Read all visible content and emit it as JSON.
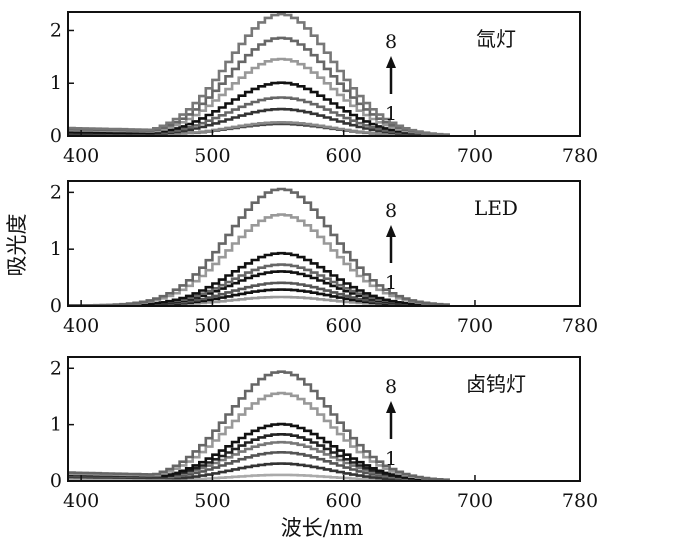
{
  "figure": {
    "ylabel": "吸光度",
    "xlabel": "波长/nm"
  },
  "chart_data": [
    {
      "type": "line",
      "title": "氙灯",
      "arrow_labels": {
        "bottom": "1",
        "top": "8"
      },
      "xlim": [
        390,
        780
      ],
      "ylim": [
        0,
        2.35
      ],
      "xticks": [
        400,
        500,
        600,
        700,
        780
      ],
      "yticks": [
        0,
        1,
        2
      ],
      "series": [
        {
          "color": "#444444",
          "peak": 0.22,
          "center": 550,
          "width": 38,
          "baseline": 0.08
        },
        {
          "color": "#888888",
          "peak": 0.25,
          "center": 550,
          "width": 38,
          "baseline": 0.02
        },
        {
          "color": "#333333",
          "peak": 0.5,
          "center": 550,
          "width": 40,
          "baseline": 0.03
        },
        {
          "color": "#666666",
          "peak": 0.72,
          "center": 550,
          "width": 40,
          "baseline": 0.05
        },
        {
          "color": "#111111",
          "peak": 1.0,
          "center": 550,
          "width": 40,
          "baseline": 0.06
        },
        {
          "color": "#999999",
          "peak": 1.45,
          "center": 550,
          "width": 40,
          "baseline": 0.1
        },
        {
          "color": "#666666",
          "peak": 1.85,
          "center": 550,
          "width": 40,
          "baseline": 0.12
        },
        {
          "color": "#777777",
          "peak": 2.3,
          "center": 550,
          "width": 40,
          "baseline": 0.14
        }
      ]
    },
    {
      "type": "line",
      "title": "LED",
      "arrow_labels": {
        "bottom": "1",
        "top": "8"
      },
      "xlim": [
        390,
        780
      ],
      "ylim": [
        0,
        2.2
      ],
      "xticks": [
        400,
        500,
        600,
        700,
        780
      ],
      "yticks": [
        0,
        1,
        2
      ],
      "series": [
        {
          "color": "#999999",
          "peak": 0.15,
          "center": 550,
          "width": 38,
          "baseline": 0.0
        },
        {
          "color": "#111111",
          "peak": 0.28,
          "center": 550,
          "width": 38,
          "baseline": 0.0
        },
        {
          "color": "#555555",
          "peak": 0.4,
          "center": 550,
          "width": 38,
          "baseline": 0.0
        },
        {
          "color": "#111111",
          "peak": 0.6,
          "center": 550,
          "width": 38,
          "baseline": 0.0
        },
        {
          "color": "#666666",
          "peak": 0.72,
          "center": 550,
          "width": 38,
          "baseline": 0.0
        },
        {
          "color": "#111111",
          "peak": 0.92,
          "center": 550,
          "width": 38,
          "baseline": 0.0
        },
        {
          "color": "#999999",
          "peak": 1.6,
          "center": 550,
          "width": 40,
          "baseline": 0.0
        },
        {
          "color": "#666666",
          "peak": 2.05,
          "center": 550,
          "width": 40,
          "baseline": 0.0
        }
      ]
    },
    {
      "type": "line",
      "title": "卤钨灯",
      "arrow_labels": {
        "bottom": "1",
        "top": "8"
      },
      "xlim": [
        390,
        780
      ],
      "ylim": [
        0,
        2.2
      ],
      "xticks": [
        400,
        500,
        600,
        700,
        780
      ],
      "yticks": [
        0,
        1,
        2
      ],
      "series": [
        {
          "color": "#aaaaaa",
          "peak": 0.1,
          "center": 550,
          "width": 38,
          "baseline": 0.02
        },
        {
          "color": "#333333",
          "peak": 0.3,
          "center": 550,
          "width": 38,
          "baseline": 0.06
        },
        {
          "color": "#555555",
          "peak": 0.5,
          "center": 550,
          "width": 40,
          "baseline": 0.08
        },
        {
          "color": "#777777",
          "peak": 0.68,
          "center": 550,
          "width": 40,
          "baseline": 0.1
        },
        {
          "color": "#222222",
          "peak": 0.82,
          "center": 550,
          "width": 40,
          "baseline": 0.1
        },
        {
          "color": "#111111",
          "peak": 1.0,
          "center": 550,
          "width": 40,
          "baseline": 0.12
        },
        {
          "color": "#999999",
          "peak": 1.55,
          "center": 550,
          "width": 40,
          "baseline": 0.12
        },
        {
          "color": "#666666",
          "peak": 1.93,
          "center": 550,
          "width": 40,
          "baseline": 0.14
        }
      ]
    }
  ]
}
